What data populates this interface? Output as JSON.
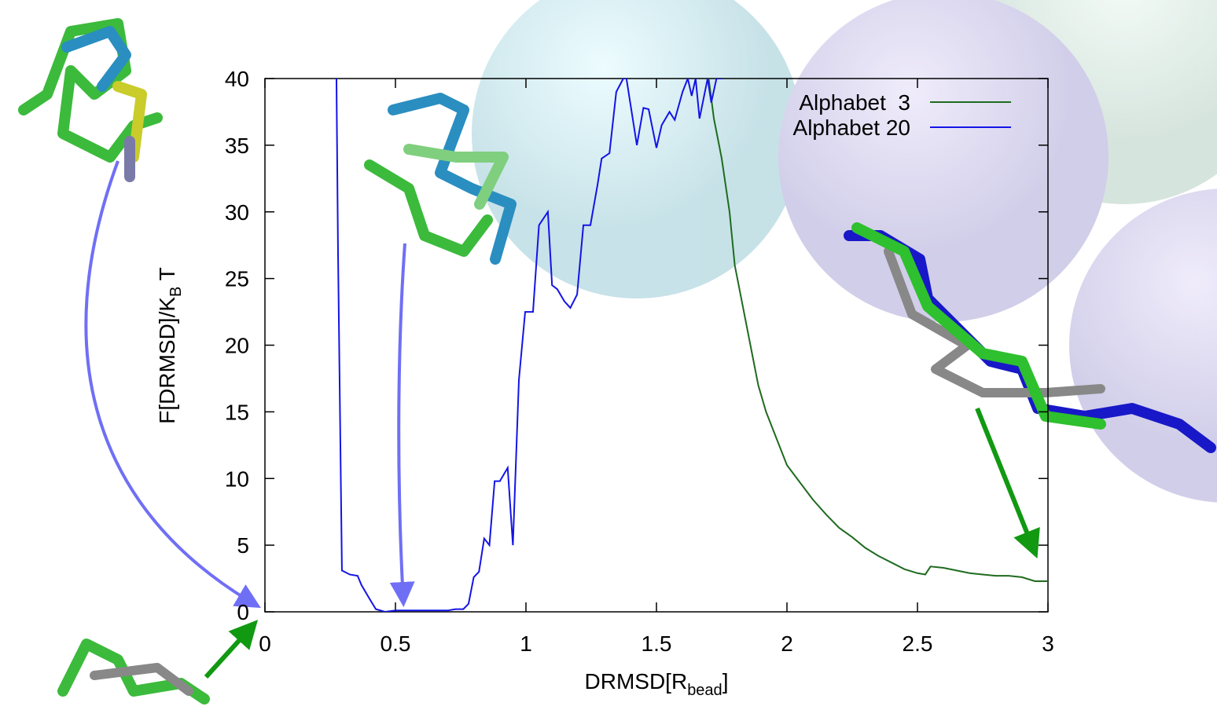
{
  "chart_data": {
    "type": "line",
    "xlabel": [
      "DRMSD[R",
      "bead",
      "]"
    ],
    "ylabel": [
      "F[DRMSD]/K",
      "B",
      " T"
    ],
    "xlim": [
      0,
      3
    ],
    "ylim": [
      0,
      40
    ],
    "xticks": [
      0,
      0.5,
      1,
      1.5,
      2,
      2.5,
      3
    ],
    "yticks": [
      0,
      5,
      10,
      15,
      20,
      25,
      30,
      35,
      40
    ],
    "legend": "top-right",
    "series": [
      {
        "name": "Alphabet  3",
        "color": "#1f6b1f",
        "x": [
          1.7,
          1.72,
          1.75,
          1.78,
          1.8,
          1.83,
          1.86,
          1.89,
          1.92,
          1.96,
          2.0,
          2.05,
          2.1,
          2.15,
          2.2,
          2.25,
          2.3,
          2.35,
          2.4,
          2.45,
          2.5,
          2.53,
          2.55,
          2.6,
          2.65,
          2.7,
          2.75,
          2.8,
          2.85,
          2.9,
          2.95,
          3.0
        ],
        "values": [
          40,
          37,
          34,
          30,
          26,
          23,
          20,
          17,
          15,
          13,
          11,
          9.7,
          8.4,
          7.3,
          6.3,
          5.6,
          4.8,
          4.2,
          3.7,
          3.2,
          2.9,
          2.8,
          3.4,
          3.3,
          3.1,
          2.9,
          2.8,
          2.7,
          2.7,
          2.6,
          2.3,
          2.3
        ]
      },
      {
        "name": "Alphabet 20",
        "color": "#1414e6",
        "x": [
          0.274,
          0.28,
          0.295,
          0.325,
          0.355,
          0.37,
          0.4,
          0.425,
          0.46,
          0.5,
          0.55,
          0.6,
          0.65,
          0.7,
          0.73,
          0.76,
          0.78,
          0.8,
          0.82,
          0.84,
          0.86,
          0.88,
          0.9,
          0.93,
          0.95,
          0.973,
          0.997,
          1.027,
          1.05,
          1.084,
          1.1,
          1.12,
          1.147,
          1.17,
          1.196,
          1.22,
          1.247,
          1.274,
          1.29,
          1.32,
          1.346,
          1.373,
          1.385,
          1.425,
          1.45,
          1.47,
          1.5,
          1.52,
          1.55,
          1.57,
          1.6,
          1.62,
          1.635,
          1.65,
          1.665,
          1.696,
          1.71,
          1.73,
          1.74,
          1.755
        ],
        "values": [
          40,
          27,
          3.1,
          2.8,
          2.7,
          2.0,
          1.0,
          0.2,
          0,
          0.1,
          0.1,
          0.1,
          0.1,
          0.1,
          0.2,
          0.2,
          0.6,
          2.6,
          3.0,
          5.5,
          5.0,
          9.8,
          9.8,
          10.8,
          5.0,
          17.4,
          22.5,
          22.5,
          29,
          30,
          24.5,
          24.2,
          23.3,
          22.8,
          23.8,
          29,
          29,
          32,
          34,
          34.4,
          39,
          40,
          40,
          35,
          37.8,
          37.7,
          34.8,
          36.5,
          37.5,
          36.9,
          39,
          40,
          38.7,
          40,
          37,
          40,
          38.2,
          40,
          40,
          40
        ]
      }
    ]
  }
}
